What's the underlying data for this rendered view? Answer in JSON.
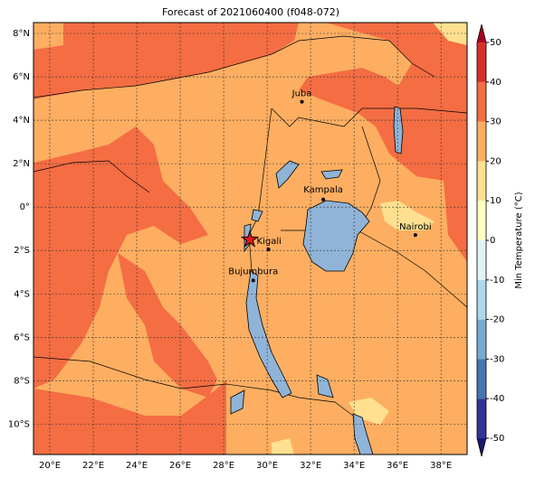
{
  "title": "Forecast of 2021060400 (f048-072)",
  "map": {
    "xlim": [
      19.25,
      39.2
    ],
    "ylim": [
      -11.4,
      8.5
    ],
    "xticks": [
      {
        "value": 20,
        "label": "20°E"
      },
      {
        "value": 22,
        "label": "22°E"
      },
      {
        "value": 24,
        "label": "24°E"
      },
      {
        "value": 26,
        "label": "26°E"
      },
      {
        "value": 28,
        "label": "28°E"
      },
      {
        "value": 30,
        "label": "30°E"
      },
      {
        "value": 32,
        "label": "32°E"
      },
      {
        "value": 34,
        "label": "34°E"
      },
      {
        "value": 36,
        "label": "36°E"
      },
      {
        "value": 38,
        "label": "38°E"
      }
    ],
    "yticks": [
      {
        "value": 8,
        "label": "8°N"
      },
      {
        "value": 6,
        "label": "6°N"
      },
      {
        "value": 4,
        "label": "4°N"
      },
      {
        "value": 2,
        "label": "2°N"
      },
      {
        "value": 0,
        "label": "0°"
      },
      {
        "value": -2,
        "label": "2°S"
      },
      {
        "value": -4,
        "label": "4°S"
      },
      {
        "value": -6,
        "label": "6°S"
      },
      {
        "value": -8,
        "label": "8°S"
      },
      {
        "value": -10,
        "label": "10°S"
      }
    ],
    "grid": true,
    "cities": [
      {
        "name": "Juba",
        "lon": 31.6,
        "lat": 4.85
      },
      {
        "name": "Kampala",
        "lon": 32.58,
        "lat": 0.35
      },
      {
        "name": "Nairobi",
        "lon": 36.82,
        "lat": -1.29
      },
      {
        "name": "Kigali",
        "lon": 30.06,
        "lat": -1.95
      },
      {
        "name": "Bujumbura",
        "lon": 29.36,
        "lat": -3.38
      }
    ],
    "marker": {
      "lon": 29.2,
      "lat": -1.5,
      "color": "#e41a1c"
    }
  },
  "colorbar": {
    "label": "Min Temperature (°C)",
    "ticks": [
      -50,
      -40,
      -30,
      -20,
      -10,
      0,
      10,
      20,
      30,
      40,
      50
    ],
    "colors": [
      "#313695",
      "#4575b4",
      "#74add1",
      "#abd9e9",
      "#e0f3f8",
      "#ffffbf",
      "#fee090",
      "#fdae61",
      "#f46d43",
      "#d73027"
    ],
    "under_color": "#1a1a6e",
    "over_color": "#a50026"
  }
}
